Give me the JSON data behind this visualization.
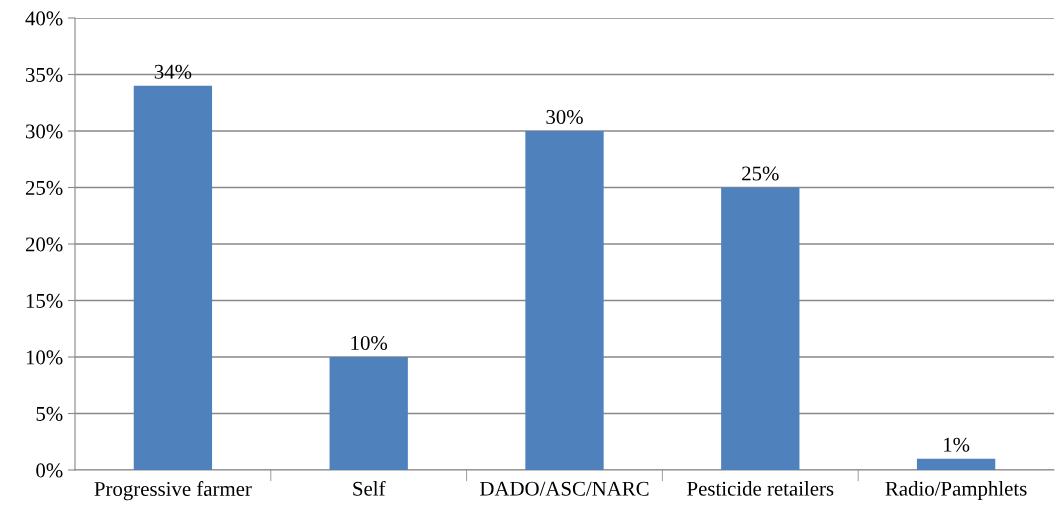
{
  "chart_data": {
    "type": "bar",
    "categories": [
      "Progressive farmer",
      "Self",
      "DADO/ASC/NARC",
      "Pesticide retailers",
      "Radio/Pamphlets"
    ],
    "values": [
      34,
      10,
      30,
      25,
      1
    ],
    "value_labels": [
      "34%",
      "10%",
      "30%",
      "25%",
      "1%"
    ],
    "color": "#4f81bd",
    "ylim": [
      0,
      40
    ],
    "yticks": [
      {
        "value": 0,
        "label": "0%"
      },
      {
        "value": 5,
        "label": "5%"
      },
      {
        "value": 10,
        "label": "10%"
      },
      {
        "value": 15,
        "label": "15%"
      },
      {
        "value": 20,
        "label": "20%"
      },
      {
        "value": 25,
        "label": "25%"
      },
      {
        "value": 30,
        "label": "30%"
      },
      {
        "value": 35,
        "label": "35%"
      },
      {
        "value": 40,
        "label": "40%"
      }
    ],
    "grid": "y"
  }
}
